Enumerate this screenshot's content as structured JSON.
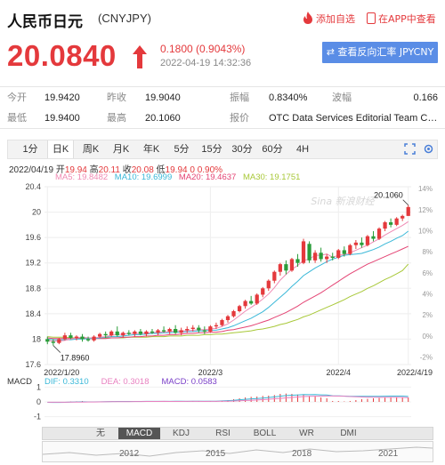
{
  "header": {
    "name": "人民币日元",
    "code": "(CNYJPY)",
    "favorite_label": "添加自选",
    "app_label": "在APP中查看"
  },
  "quote": {
    "price": "20.0840",
    "change": "0.1800 (0.9043%)",
    "time": "2022-04-19 14:32:36",
    "reverse_button": "查看反向汇率 JPYCNY",
    "color_up": "#e4393c"
  },
  "stats": {
    "open_label": "今开",
    "open": "19.9420",
    "prev_close_label": "昨收",
    "prev_close": "19.9040",
    "amplitude_label": "振幅",
    "amplitude": "0.8340%",
    "volatility_label": "波幅",
    "volatility": "0.166",
    "low_label": "最低",
    "low": "19.9400",
    "high_label": "最高",
    "high": "20.1060",
    "quote_source_label": "报价",
    "quote_source": "OTC Data Services Editorial Team Calc..."
  },
  "tabs": [
    "1分",
    "日K",
    "周K",
    "月K",
    "年K",
    "5分",
    "15分",
    "30分",
    "60分",
    "4H"
  ],
  "active_tab": "日K",
  "chart_info": {
    "date": "2022/04/19",
    "open_label": "开",
    "open": "19.94",
    "high_label": "高",
    "high": "20.11",
    "close_label": "收",
    "close": "20.08",
    "low_label": "低",
    "low": "19.94",
    "change": "0 0.90%"
  },
  "ma_legend": {
    "ma5": "MA5: 19.8482",
    "ma10": "MA10: 19.6999",
    "ma20": "MA20: 19.4637",
    "ma30": "MA30: 19.1751",
    "colors": {
      "ma5": "#f08ab4",
      "ma10": "#3ab8d8",
      "ma20": "#e44474",
      "ma30": "#a8c838"
    }
  },
  "watermark": "Sina 新浪财经",
  "macd_info": {
    "label": "MACD",
    "dif": "DIF: 0.3310",
    "dea": "DEA: 0.3018",
    "macd": "MACD: 0.0583"
  },
  "indicators": [
    "无",
    "MACD",
    "KDJ",
    "RSI",
    "BOLL",
    "WR",
    "DMI"
  ],
  "active_indicator": "MACD",
  "nav_arrows": "▲ ▼",
  "timeline_years": [
    "2012",
    "2015",
    "2018",
    "2021"
  ],
  "chart_data": {
    "type": "candlestick",
    "y_ticks": [
      "20.4",
      "20",
      "19.6",
      "19.2",
      "18.8",
      "18.4",
      "18",
      "17.6"
    ],
    "ylim": [
      17.6,
      20.4
    ],
    "pct_ticks": [
      "14%",
      "12%",
      "10%",
      "8%",
      "6%",
      "4%",
      "2%",
      "0%",
      "-2%"
    ],
    "x_ticks": [
      "2022/1/20",
      "2022/3",
      "2022/4",
      "2022/4/19"
    ],
    "x_tick_index": [
      0,
      28,
      50,
      62
    ],
    "annotations": {
      "max": "20.1060",
      "min": "17.8960"
    },
    "candles": [
      {
        "o": 18.0,
        "h": 18.04,
        "l": 17.92,
        "c": 17.96
      },
      {
        "o": 17.96,
        "h": 18.0,
        "l": 17.9,
        "c": 17.94
      },
      {
        "o": 17.94,
        "h": 18.02,
        "l": 17.92,
        "c": 18.0
      },
      {
        "o": 18.0,
        "h": 18.1,
        "l": 17.98,
        "c": 18.06
      },
      {
        "o": 18.06,
        "h": 18.1,
        "l": 18.0,
        "c": 18.02
      },
      {
        "o": 18.02,
        "h": 18.06,
        "l": 17.98,
        "c": 18.04
      },
      {
        "o": 18.04,
        "h": 18.08,
        "l": 17.96,
        "c": 18.0
      },
      {
        "o": 18.0,
        "h": 18.04,
        "l": 17.96,
        "c": 17.98
      },
      {
        "o": 17.98,
        "h": 18.06,
        "l": 17.96,
        "c": 18.04
      },
      {
        "o": 18.04,
        "h": 18.1,
        "l": 18.02,
        "c": 18.08
      },
      {
        "o": 18.08,
        "h": 18.12,
        "l": 18.02,
        "c": 18.06
      },
      {
        "o": 18.06,
        "h": 18.14,
        "l": 18.04,
        "c": 18.12
      },
      {
        "o": 18.12,
        "h": 18.2,
        "l": 18.04,
        "c": 18.06
      },
      {
        "o": 18.06,
        "h": 18.12,
        "l": 18.02,
        "c": 18.1
      },
      {
        "o": 18.1,
        "h": 18.14,
        "l": 18.06,
        "c": 18.08
      },
      {
        "o": 18.08,
        "h": 18.14,
        "l": 18.04,
        "c": 18.12
      },
      {
        "o": 18.12,
        "h": 18.16,
        "l": 18.06,
        "c": 18.08
      },
      {
        "o": 18.08,
        "h": 18.14,
        "l": 18.04,
        "c": 18.12
      },
      {
        "o": 18.12,
        "h": 18.16,
        "l": 18.08,
        "c": 18.1
      },
      {
        "o": 18.1,
        "h": 18.16,
        "l": 18.06,
        "c": 18.14
      },
      {
        "o": 18.14,
        "h": 18.2,
        "l": 18.1,
        "c": 18.12
      },
      {
        "o": 18.12,
        "h": 18.18,
        "l": 18.08,
        "c": 18.16
      },
      {
        "o": 18.16,
        "h": 18.22,
        "l": 18.08,
        "c": 18.1
      },
      {
        "o": 18.1,
        "h": 18.18,
        "l": 18.06,
        "c": 18.14
      },
      {
        "o": 18.14,
        "h": 18.2,
        "l": 18.1,
        "c": 18.16
      },
      {
        "o": 18.16,
        "h": 18.22,
        "l": 18.12,
        "c": 18.18
      },
      {
        "o": 18.18,
        "h": 18.22,
        "l": 18.1,
        "c": 18.14
      },
      {
        "o": 18.14,
        "h": 18.2,
        "l": 18.08,
        "c": 18.12
      },
      {
        "o": 18.12,
        "h": 18.22,
        "l": 18.1,
        "c": 18.2
      },
      {
        "o": 18.2,
        "h": 18.26,
        "l": 18.16,
        "c": 18.22
      },
      {
        "o": 18.22,
        "h": 18.32,
        "l": 18.2,
        "c": 18.3
      },
      {
        "o": 18.3,
        "h": 18.38,
        "l": 18.26,
        "c": 18.36
      },
      {
        "o": 18.36,
        "h": 18.46,
        "l": 18.34,
        "c": 18.44
      },
      {
        "o": 18.44,
        "h": 18.54,
        "l": 18.42,
        "c": 18.52
      },
      {
        "o": 18.52,
        "h": 18.62,
        "l": 18.48,
        "c": 18.6
      },
      {
        "o": 18.6,
        "h": 18.68,
        "l": 18.54,
        "c": 18.56
      },
      {
        "o": 18.56,
        "h": 18.72,
        "l": 18.54,
        "c": 18.7
      },
      {
        "o": 18.7,
        "h": 18.82,
        "l": 18.66,
        "c": 18.8
      },
      {
        "o": 18.8,
        "h": 18.94,
        "l": 18.76,
        "c": 18.92
      },
      {
        "o": 18.92,
        "h": 19.08,
        "l": 18.88,
        "c": 19.06
      },
      {
        "o": 19.06,
        "h": 19.2,
        "l": 19.0,
        "c": 19.18
      },
      {
        "o": 19.18,
        "h": 19.24,
        "l": 19.02,
        "c": 19.08
      },
      {
        "o": 19.08,
        "h": 19.28,
        "l": 19.06,
        "c": 19.26
      },
      {
        "o": 19.26,
        "h": 19.34,
        "l": 19.14,
        "c": 19.2
      },
      {
        "o": 19.2,
        "h": 19.58,
        "l": 19.18,
        "c": 19.54
      },
      {
        "o": 19.5,
        "h": 19.54,
        "l": 19.2,
        "c": 19.24
      },
      {
        "o": 19.24,
        "h": 19.4,
        "l": 19.2,
        "c": 19.36
      },
      {
        "o": 19.36,
        "h": 19.44,
        "l": 19.22,
        "c": 19.26
      },
      {
        "o": 19.26,
        "h": 19.34,
        "l": 19.2,
        "c": 19.3
      },
      {
        "o": 19.3,
        "h": 19.36,
        "l": 19.24,
        "c": 19.28
      },
      {
        "o": 19.28,
        "h": 19.42,
        "l": 19.26,
        "c": 19.4
      },
      {
        "o": 19.4,
        "h": 19.46,
        "l": 19.3,
        "c": 19.34
      },
      {
        "o": 19.34,
        "h": 19.5,
        "l": 19.32,
        "c": 19.48
      },
      {
        "o": 19.48,
        "h": 19.56,
        "l": 19.42,
        "c": 19.52
      },
      {
        "o": 19.52,
        "h": 19.6,
        "l": 19.44,
        "c": 19.48
      },
      {
        "o": 19.48,
        "h": 19.64,
        "l": 19.46,
        "c": 19.62
      },
      {
        "o": 19.62,
        "h": 19.7,
        "l": 19.54,
        "c": 19.58
      },
      {
        "o": 19.58,
        "h": 19.76,
        "l": 19.56,
        "c": 19.74
      },
      {
        "o": 19.74,
        "h": 19.86,
        "l": 19.7,
        "c": 19.84
      },
      {
        "o": 19.84,
        "h": 19.9,
        "l": 19.76,
        "c": 19.8
      },
      {
        "o": 19.8,
        "h": 19.92,
        "l": 19.78,
        "c": 19.9
      },
      {
        "o": 19.9,
        "h": 19.96,
        "l": 19.86,
        "c": 19.94
      },
      {
        "o": 19.94,
        "h": 20.11,
        "l": 19.94,
        "c": 20.08
      }
    ],
    "ma5": [
      17.98,
      17.97,
      17.97,
      17.98,
      18.0,
      18.02,
      18.03,
      18.02,
      18.02,
      18.03,
      18.04,
      18.06,
      18.07,
      18.08,
      18.09,
      18.09,
      18.09,
      18.1,
      18.1,
      18.11,
      18.11,
      18.12,
      18.13,
      18.13,
      18.13,
      18.14,
      18.15,
      18.15,
      18.16,
      18.17,
      18.2,
      18.24,
      18.3,
      18.37,
      18.44,
      18.5,
      18.56,
      18.63,
      18.71,
      18.81,
      18.93,
      19.02,
      19.1,
      19.16,
      19.24,
      19.26,
      19.32,
      19.32,
      19.34,
      19.29,
      19.32,
      19.33,
      19.36,
      19.4,
      19.44,
      19.48,
      19.53,
      19.58,
      19.64,
      19.69,
      19.74,
      19.79,
      19.85
    ],
    "ma10": [
      18.0,
      17.99,
      17.99,
      17.99,
      17.99,
      18.0,
      18.0,
      18.01,
      18.01,
      18.02,
      18.03,
      18.04,
      18.04,
      18.05,
      18.06,
      18.07,
      18.07,
      18.08,
      18.09,
      18.09,
      18.1,
      18.1,
      18.11,
      18.11,
      18.12,
      18.12,
      18.13,
      18.13,
      18.14,
      18.14,
      18.16,
      18.18,
      18.21,
      18.25,
      18.29,
      18.33,
      18.38,
      18.43,
      18.5,
      18.58,
      18.66,
      18.74,
      18.83,
      18.91,
      19.0,
      19.06,
      19.12,
      19.17,
      19.22,
      19.26,
      19.29,
      19.32,
      19.33,
      19.34,
      19.35,
      19.38,
      19.41,
      19.45,
      19.5,
      19.54,
      19.59,
      19.63,
      19.7
    ],
    "ma20": [
      18.02,
      18.01,
      18.01,
      18.01,
      18.01,
      18.01,
      18.01,
      18.01,
      18.01,
      18.01,
      18.01,
      18.02,
      18.02,
      18.03,
      18.03,
      18.04,
      18.04,
      18.05,
      18.05,
      18.06,
      18.06,
      18.07,
      18.07,
      18.08,
      18.09,
      18.09,
      18.1,
      18.1,
      18.11,
      18.11,
      18.12,
      18.14,
      18.15,
      18.17,
      18.19,
      18.21,
      18.24,
      18.27,
      18.3,
      18.34,
      18.38,
      18.42,
      18.47,
      18.52,
      18.58,
      18.63,
      18.68,
      18.73,
      18.79,
      18.85,
      18.91,
      18.97,
      19.03,
      19.08,
      19.13,
      19.18,
      19.22,
      19.26,
      19.3,
      19.34,
      19.38,
      19.42,
      19.46
    ],
    "ma30": [
      18.04,
      18.03,
      18.03,
      18.03,
      18.02,
      18.02,
      18.02,
      18.02,
      18.02,
      18.02,
      18.02,
      18.02,
      18.02,
      18.02,
      18.03,
      18.03,
      18.03,
      18.03,
      18.04,
      18.04,
      18.04,
      18.05,
      18.05,
      18.05,
      18.06,
      18.06,
      18.06,
      18.07,
      18.07,
      18.08,
      18.08,
      18.09,
      18.1,
      18.11,
      18.12,
      18.13,
      18.15,
      18.16,
      18.18,
      18.2,
      18.23,
      18.25,
      18.28,
      18.31,
      18.35,
      18.38,
      18.42,
      18.46,
      18.5,
      18.54,
      18.58,
      18.62,
      18.67,
      18.71,
      18.75,
      18.8,
      18.84,
      18.89,
      18.94,
      18.98,
      19.03,
      19.08,
      19.18
    ],
    "macd_ylim": [
      -1.2,
      1.2
    ],
    "macd_y_ticks": [
      "1",
      "0",
      "-1"
    ],
    "macd_hist_max": 0.06
  }
}
